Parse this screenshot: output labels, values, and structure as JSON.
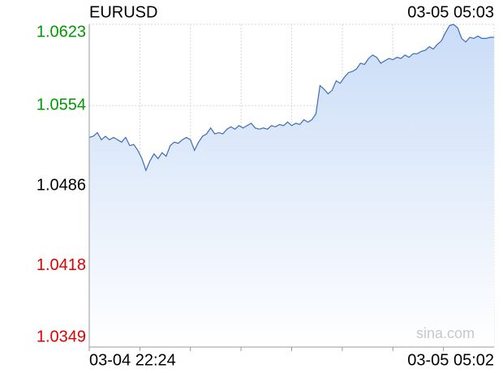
{
  "chart_data": {
    "type": "line",
    "title": "EURUSD",
    "timestamp": "03-05 05:03",
    "watermark": "sina.com",
    "categories": [
      "03-04 22:24",
      null,
      null,
      null,
      null,
      null,
      null,
      null,
      null,
      null,
      null,
      null,
      null,
      null,
      null,
      null,
      null,
      null,
      null,
      null,
      null,
      null,
      null,
      null,
      null,
      null,
      null,
      null,
      null,
      null,
      null,
      null,
      null,
      null,
      null,
      null,
      null,
      null,
      null,
      null,
      null,
      null,
      null,
      null,
      null,
      null,
      null,
      null,
      null,
      null,
      null,
      null,
      null,
      null,
      null,
      null,
      null,
      null,
      null,
      null,
      null,
      null,
      null,
      null,
      null,
      null,
      null,
      null,
      null,
      null,
      null,
      null,
      null,
      null,
      null,
      null,
      null,
      null,
      null,
      null,
      null,
      null,
      null,
      null,
      null,
      null,
      null,
      null,
      null,
      null,
      null,
      null,
      null,
      null,
      null,
      null,
      null,
      null,
      null,
      null,
      "03-05 05:02"
    ],
    "values": [
      1.0527,
      1.0528,
      1.0531,
      1.0525,
      1.0528,
      1.0525,
      1.0527,
      1.0525,
      1.0523,
      1.0527,
      1.052,
      1.0521,
      1.0516,
      1.0509,
      1.0499,
      1.0507,
      1.0513,
      1.0509,
      1.0514,
      1.0511,
      1.052,
      1.0523,
      1.0522,
      1.0525,
      1.0527,
      1.0525,
      1.0516,
      1.0523,
      1.0528,
      1.053,
      1.0535,
      1.053,
      1.0531,
      1.053,
      1.0534,
      1.0536,
      1.0534,
      1.0537,
      1.0535,
      1.0537,
      1.0539,
      1.0535,
      1.0534,
      1.0535,
      1.0534,
      1.0537,
      1.0536,
      1.0538,
      1.0537,
      1.054,
      1.0537,
      1.0539,
      1.0538,
      1.0542,
      1.054,
      1.0542,
      1.0547,
      1.0571,
      1.0568,
      1.0564,
      1.0567,
      1.0575,
      1.0573,
      1.0578,
      1.0582,
      1.0583,
      1.0585,
      1.059,
      1.0589,
      1.0594,
      1.0597,
      1.0595,
      1.059,
      1.0592,
      1.0594,
      1.0593,
      1.0595,
      1.0594,
      1.0597,
      1.0595,
      1.0598,
      1.0598,
      1.06,
      1.0601,
      1.0604,
      1.0602,
      1.0606,
      1.0609,
      1.0616,
      1.0622,
      1.0623,
      1.062,
      1.0611,
      1.0608,
      1.0612,
      1.0611,
      1.0613,
      1.0611,
      1.0611,
      1.0612,
      1.0612
    ],
    "color": "#3c6cb4",
    "ylim": [
      1.0349,
      1.0623
    ],
    "yticks": [
      1.0349,
      1.0418,
      1.0486,
      1.0554,
      1.0623
    ],
    "reference": 1.0486,
    "up_color": "#009900",
    "down_color": "#e00000",
    "grid": true
  }
}
